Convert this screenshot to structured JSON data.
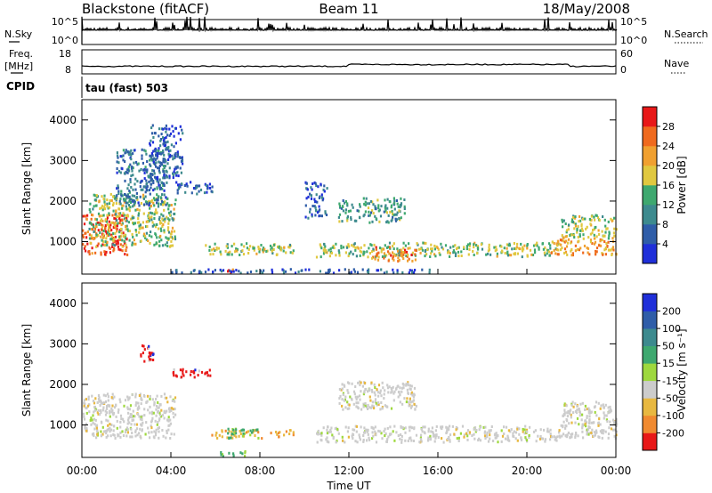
{
  "header": {
    "station": "Blackstone (fitACF)",
    "beam": "Beam 11",
    "date": "18/May/2008"
  },
  "top_panels": {
    "nsky_label": "N.Sky",
    "nsky_ticks": [
      "10^5",
      "10^0"
    ],
    "nsearch_label": "N.Search",
    "nsearch_ticks": [
      "10^5",
      "10^0"
    ],
    "freq_label": "Freq.",
    "freq_unit": "[MHz]",
    "freq_ticks": [
      "18",
      "8"
    ],
    "nave_label": "Nave",
    "nave_ticks": [
      "60",
      "0"
    ],
    "cpid_label": "CPID",
    "cpid_value": "tau (fast) 503"
  },
  "chart_data": [
    {
      "type": "heatmap",
      "name": "power-panel",
      "ylabel": "Slant Range [km]",
      "yticks": [
        "1000",
        "2000",
        "3000",
        "4000"
      ],
      "ylim": [
        200,
        4500
      ],
      "xlim_hours": [
        0,
        24
      ],
      "colorbar_label": "Power [dB]",
      "colorbar_ticks": [
        "4",
        "8",
        "12",
        "16",
        "20",
        "24",
        "28"
      ],
      "colorbar_colors": [
        "#1f2fd9",
        "#2f5da8",
        "#3d8a8e",
        "#3ea86f",
        "#e0c840",
        "#f0a030",
        "#ef6a1e",
        "#e81818"
      ],
      "colorbar_range": [
        0,
        32
      ],
      "regions": [
        {
          "t0": 0.0,
          "t1": 2.0,
          "r0": 700,
          "r1": 1700,
          "level": 28
        },
        {
          "t0": 0.3,
          "t1": 4.2,
          "r0": 900,
          "r1": 2200,
          "level": 16
        },
        {
          "t0": 1.5,
          "t1": 3.8,
          "r0": 1900,
          "r1": 3300,
          "level": 8
        },
        {
          "t0": 3.0,
          "t1": 4.5,
          "r0": 2600,
          "r1": 3900,
          "level": 6
        },
        {
          "t0": 4.2,
          "t1": 6.0,
          "r0": 2200,
          "r1": 2500,
          "level": 6
        },
        {
          "t0": 5.5,
          "t1": 9.5,
          "r0": 700,
          "r1": 1000,
          "level": 16
        },
        {
          "t0": 6.5,
          "t1": 7.2,
          "r0": 250,
          "r1": 350,
          "level": 28
        },
        {
          "t0": 4.0,
          "t1": 16.0,
          "r0": 250,
          "r1": 350,
          "level": 6
        },
        {
          "t0": 10.5,
          "t1": 21.5,
          "r0": 650,
          "r1": 1000,
          "level": 16
        },
        {
          "t0": 13.0,
          "t1": 15.0,
          "r0": 550,
          "r1": 900,
          "level": 24
        },
        {
          "t0": 11.5,
          "t1": 14.5,
          "r0": 1500,
          "r1": 2100,
          "level": 12
        },
        {
          "t0": 10.0,
          "t1": 11.0,
          "r0": 1600,
          "r1": 2500,
          "level": 6
        },
        {
          "t0": 21.5,
          "t1": 24.0,
          "r0": 1100,
          "r1": 1700,
          "level": 16
        },
        {
          "t0": 21.0,
          "t1": 24.0,
          "r0": 700,
          "r1": 1100,
          "level": 22
        }
      ]
    },
    {
      "type": "heatmap",
      "name": "velocity-panel",
      "ylabel": "Slant Range [km]",
      "yticks": [
        "1000",
        "2000",
        "3000",
        "4000"
      ],
      "ylim": [
        200,
        4500
      ],
      "xlim_hours": [
        0,
        24
      ],
      "xticks": [
        "00:00",
        "04:00",
        "08:00",
        "12:00",
        "16:00",
        "20:00",
        "00:00"
      ],
      "xlabel": "Time UT",
      "colorbar_label": "Velocity [m s⁻¹]",
      "colorbar_ticks": [
        "200",
        "100",
        "50",
        "15",
        "-15",
        "-50",
        "-100",
        "-200"
      ],
      "colorbar_colors": [
        "#1f2fd9",
        "#2f5da8",
        "#3d8a8e",
        "#3ea86f",
        "#9ed83e",
        "#cccccc",
        "#e8b840",
        "#f08a30",
        "#e81818"
      ],
      "regions": [
        {
          "t0": 0.0,
          "t1": 4.2,
          "r0": 700,
          "r1": 1800,
          "level": "ground"
        },
        {
          "t0": 2.6,
          "t1": 3.4,
          "r0": 2600,
          "r1": 3000,
          "level": "red"
        },
        {
          "t0": 4.0,
          "t1": 6.0,
          "r0": 2200,
          "r1": 2400,
          "level": "red"
        },
        {
          "t0": 5.8,
          "t1": 9.5,
          "r0": 700,
          "r1": 900,
          "level": "orange"
        },
        {
          "t0": 6.5,
          "t1": 8.0,
          "r0": 700,
          "r1": 950,
          "level": "green"
        },
        {
          "t0": 6.2,
          "t1": 7.4,
          "r0": 250,
          "r1": 380,
          "level": "green"
        },
        {
          "t0": 10.5,
          "t1": 21.5,
          "r0": 600,
          "r1": 1000,
          "level": "ground"
        },
        {
          "t0": 11.5,
          "t1": 15.0,
          "r0": 1400,
          "r1": 2100,
          "level": "ground"
        },
        {
          "t0": 21.5,
          "t1": 24.0,
          "r0": 700,
          "r1": 1600,
          "level": "ground"
        }
      ]
    }
  ]
}
